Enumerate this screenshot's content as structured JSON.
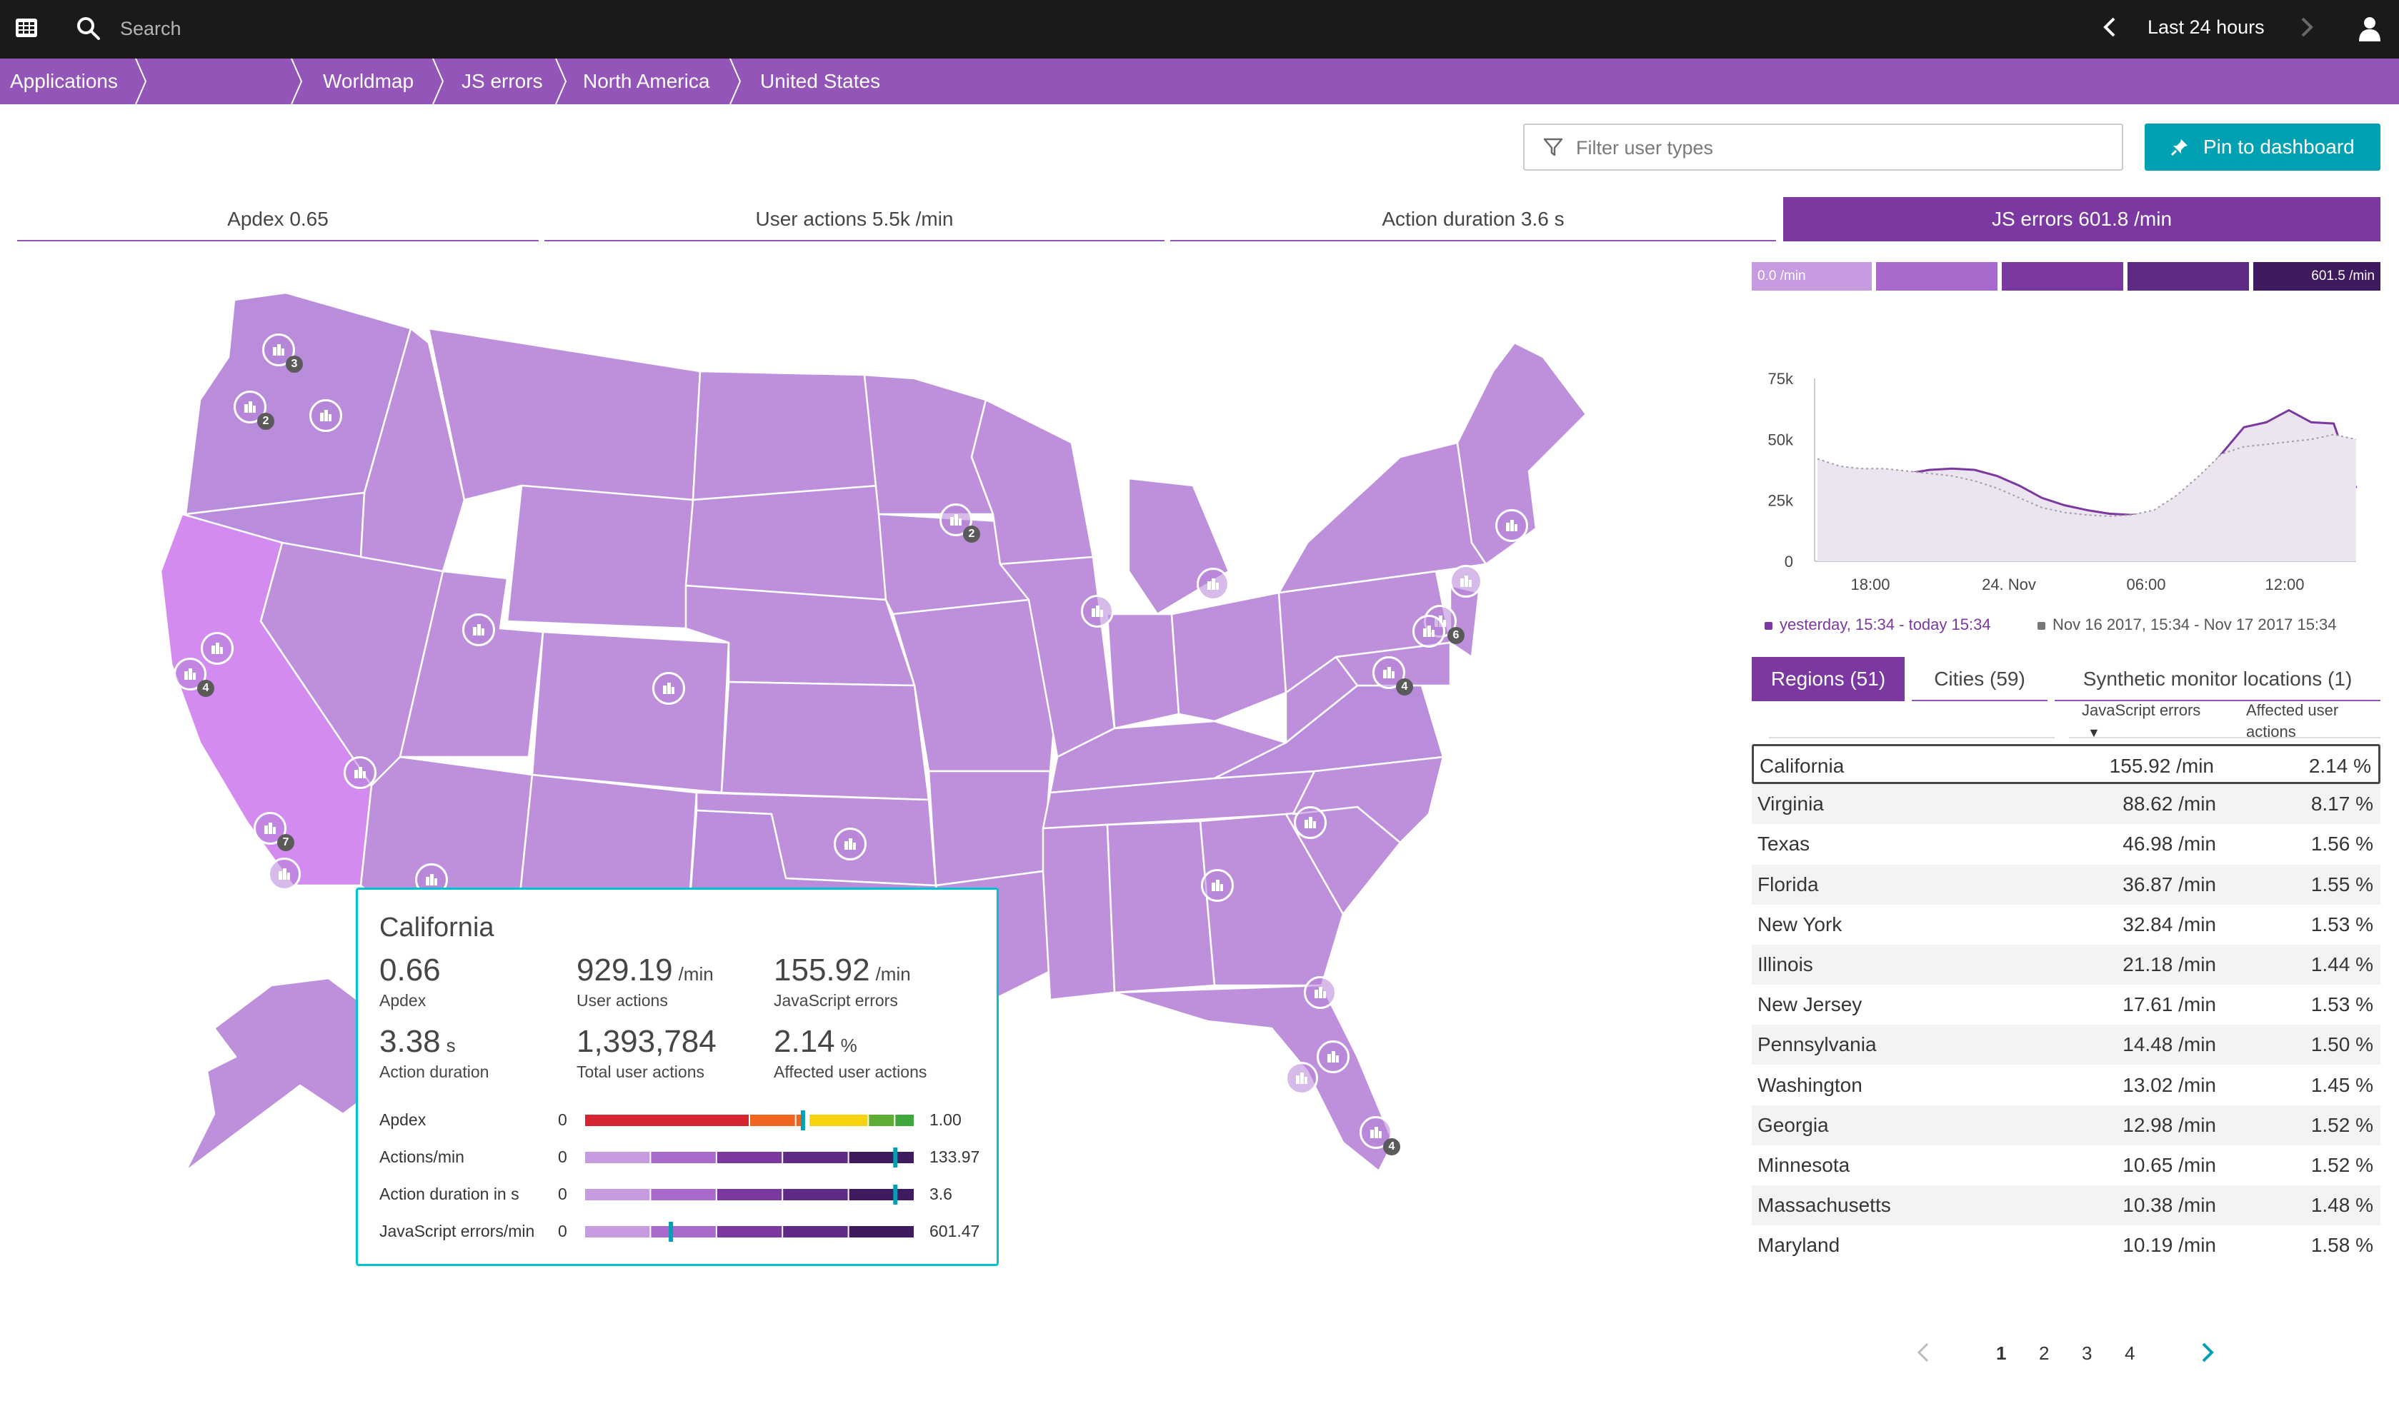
{
  "topbar": {
    "search_placeholder": "Search",
    "time_range": "Last 24 hours"
  },
  "breadcrumb": [
    {
      "label": "Applications"
    },
    {
      "label": ""
    },
    {
      "label": "Worldmap"
    },
    {
      "label": "JS errors"
    },
    {
      "label": "North America"
    },
    {
      "label": "United States"
    }
  ],
  "toolbar": {
    "filter_placeholder": "Filter user types",
    "pin_label": "Pin to dashboard"
  },
  "metric_tabs": [
    {
      "label": "Apdex 0.65",
      "active": false
    },
    {
      "label": "User actions 5.5k /min",
      "active": false
    },
    {
      "label": "Action duration 3.6 s",
      "active": false
    },
    {
      "label": "JS errors 601.8 /min",
      "active": true
    }
  ],
  "legend": {
    "min_label": "0.0 /min",
    "max_label": "601.5 /min",
    "colors": [
      "#c69be0",
      "#a868cc",
      "#7c38a1",
      "#5e2a85",
      "#3f1a5e"
    ]
  },
  "tooltip": {
    "title": "California",
    "metrics": [
      {
        "value": "0.66",
        "unit": "",
        "label": "Apdex"
      },
      {
        "value": "929.19",
        "unit": "/min",
        "label": "User actions"
      },
      {
        "value": "155.92",
        "unit": "/min",
        "label": "JavaScript errors"
      },
      {
        "value": "3.38",
        "unit": "s",
        "label": "Action duration"
      },
      {
        "value": "1,393,784",
        "unit": "",
        "label": "Total user actions"
      },
      {
        "value": "2.14",
        "unit": "%",
        "label": "Affected user actions"
      }
    ],
    "bars": [
      {
        "label": "Apdex",
        "min": "0",
        "max": "1.00",
        "marker": 0.66,
        "kind": "apdex"
      },
      {
        "label": "Actions/min",
        "min": "0",
        "max": "133.97",
        "marker": 0.94,
        "kind": "purple"
      },
      {
        "label": "Action duration in s",
        "min": "0",
        "max": "3.6",
        "marker": 0.94,
        "kind": "purple"
      },
      {
        "label": "JavaScript errors/min",
        "min": "0",
        "max": "601.47",
        "marker": 0.26,
        "kind": "purple"
      }
    ]
  },
  "chart_data": {
    "type": "area",
    "y_ticks": [
      "75k",
      "50k",
      "25k",
      "0"
    ],
    "x_ticks": [
      "18:00",
      "24. Nov",
      "06:00",
      "12:00"
    ],
    "ylim": [
      0,
      75000
    ],
    "series": [
      {
        "name": "yesterday, 15:34 - today 15:34",
        "color": "#7c38a1",
        "values": [
          37000,
          36500,
          36000,
          35500,
          36000,
          37500,
          38000,
          37500,
          35000,
          31000,
          26000,
          23000,
          21000,
          19500,
          19000,
          19500,
          24000,
          32000,
          44000,
          55000,
          57000,
          62000,
          57000,
          56500,
          30000
        ]
      },
      {
        "name": "Nov 16 2017, 15:34 - Nov 17 2017 15:34",
        "color": "#9b9b9b",
        "values": [
          42000,
          39000,
          38000,
          38000,
          37000,
          36000,
          35000,
          33000,
          30000,
          26000,
          22000,
          20000,
          19000,
          18500,
          19000,
          21000,
          27000,
          35000,
          44000,
          47000,
          48000,
          49000,
          50000,
          52000,
          50000
        ]
      }
    ]
  },
  "table_tabs": [
    {
      "label": "Regions (51)",
      "active": true
    },
    {
      "label": "Cities (59)",
      "active": false
    },
    {
      "label": "Synthetic monitor locations (1)",
      "active": false
    }
  ],
  "table": {
    "col_js": "JavaScript errors",
    "col_aff_1": "Affected user",
    "col_aff_2": "actions",
    "rows": [
      {
        "name": "California",
        "js": "155.92 /min",
        "aff": "2.14 %"
      },
      {
        "name": "Virginia",
        "js": "88.62 /min",
        "aff": "8.17 %"
      },
      {
        "name": "Texas",
        "js": "46.98 /min",
        "aff": "1.56 %"
      },
      {
        "name": "Florida",
        "js": "36.87 /min",
        "aff": "1.55 %"
      },
      {
        "name": "New York",
        "js": "32.84 /min",
        "aff": "1.53 %"
      },
      {
        "name": "Illinois",
        "js": "21.18 /min",
        "aff": "1.44 %"
      },
      {
        "name": "New Jersey",
        "js": "17.61 /min",
        "aff": "1.53 %"
      },
      {
        "name": "Pennsylvania",
        "js": "14.48 /min",
        "aff": "1.50 %"
      },
      {
        "name": "Washington",
        "js": "13.02 /min",
        "aff": "1.45 %"
      },
      {
        "name": "Georgia",
        "js": "12.98 /min",
        "aff": "1.52 %"
      },
      {
        "name": "Minnesota",
        "js": "10.65 /min",
        "aff": "1.52 %"
      },
      {
        "name": "Massachusetts",
        "js": "10.38 /min",
        "aff": "1.48 %"
      },
      {
        "name": "Maryland",
        "js": "10.19 /min",
        "aff": "1.58 %"
      }
    ]
  },
  "pagination": {
    "pages": [
      "1",
      "2",
      "3",
      "4"
    ],
    "current": "1"
  },
  "map_markers": [
    {
      "name": "seattle",
      "count": "3"
    },
    {
      "name": "portland",
      "count": "2"
    },
    {
      "name": "oregon-east",
      "count": ""
    },
    {
      "name": "bay-area",
      "count": ""
    },
    {
      "name": "san-jose",
      "count": "4"
    },
    {
      "name": "fresno",
      "count": ""
    },
    {
      "name": "los-angeles",
      "count": "7"
    },
    {
      "name": "san-diego",
      "count": ""
    },
    {
      "name": "salt-lake-city",
      "count": ""
    },
    {
      "name": "denver",
      "count": ""
    },
    {
      "name": "phoenix",
      "count": ""
    },
    {
      "name": "oklahoma-city",
      "count": ""
    },
    {
      "name": "minneapolis",
      "count": "2"
    },
    {
      "name": "chicago",
      "count": ""
    },
    {
      "name": "detroit",
      "count": ""
    },
    {
      "name": "boston",
      "count": ""
    },
    {
      "name": "new-york",
      "count": "6"
    },
    {
      "name": "new-york-bot",
      "count": ""
    },
    {
      "name": "philadelphia",
      "count": ""
    },
    {
      "name": "washington-dc",
      "count": "4"
    },
    {
      "name": "charlotte",
      "count": ""
    },
    {
      "name": "atlanta",
      "count": ""
    },
    {
      "name": "jacksonville",
      "count": ""
    },
    {
      "name": "orlando",
      "count": ""
    },
    {
      "name": "tampa",
      "count": ""
    },
    {
      "name": "miami",
      "count": "4"
    }
  ]
}
